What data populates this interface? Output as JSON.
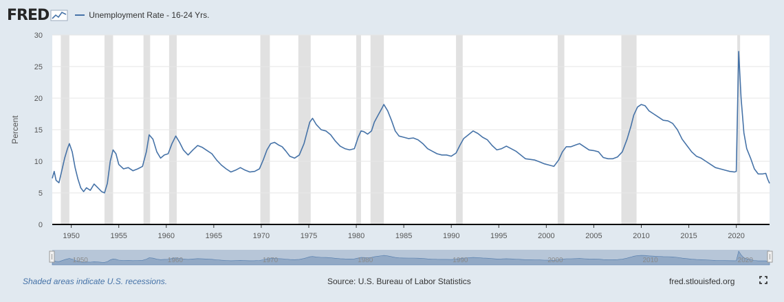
{
  "header": {
    "logo_text": "FRED",
    "legend_label": "Unemployment Rate - 16-24 Yrs."
  },
  "colors": {
    "line": "#4572a7",
    "recession": "#e1e1e1",
    "page_bg": "#e1e9f0",
    "navigator_fill": "#b7c6d8"
  },
  "footer": {
    "recession_note": "Shaded areas indicate U.S. recessions.",
    "source": "Source: U.S. Bureau of Labor Statistics",
    "site": "fred.stlouisfed.org",
    "fullscreen_icon": "expand-icon"
  },
  "chart_data": {
    "type": "line",
    "title": "",
    "xlabel": "",
    "ylabel": "Percent",
    "xlim": [
      1948.0,
      2023.5
    ],
    "ylim": [
      0,
      30
    ],
    "yticks": [
      "0",
      "5",
      "10",
      "15",
      "20",
      "25",
      "30"
    ],
    "xticks": [
      "1950",
      "1955",
      "1960",
      "1965",
      "1970",
      "1975",
      "1980",
      "1985",
      "1990",
      "1995",
      "2000",
      "2005",
      "2010",
      "2015",
      "2020"
    ],
    "navigator_labels": [
      "1950",
      "1960",
      "1970",
      "1980",
      "1990",
      "2000",
      "2010",
      "2020"
    ],
    "grid": true,
    "recessions": [
      [
        1948.9,
        1949.8
      ],
      [
        1953.5,
        1954.4
      ],
      [
        1957.6,
        1958.3
      ],
      [
        1960.3,
        1961.1
      ],
      [
        1969.9,
        1970.9
      ],
      [
        1973.9,
        1975.2
      ],
      [
        1980.0,
        1980.5
      ],
      [
        1981.5,
        1982.9
      ],
      [
        1990.5,
        1991.2
      ],
      [
        2001.2,
        2001.9
      ],
      [
        2007.9,
        2009.5
      ],
      [
        2020.1,
        2020.4
      ]
    ],
    "series": [
      {
        "values": [
          [
            1948.0,
            7.3
          ],
          [
            1948.2,
            8.4
          ],
          [
            1948.4,
            7.0
          ],
          [
            1948.7,
            6.6
          ],
          [
            1949.0,
            8.5
          ],
          [
            1949.3,
            10.5
          ],
          [
            1949.6,
            12.0
          ],
          [
            1949.8,
            12.8
          ],
          [
            1950.1,
            11.5
          ],
          [
            1950.4,
            9.0
          ],
          [
            1950.7,
            7.2
          ],
          [
            1951.0,
            5.8
          ],
          [
            1951.3,
            5.2
          ],
          [
            1951.6,
            5.8
          ],
          [
            1952.0,
            5.4
          ],
          [
            1952.4,
            6.4
          ],
          [
            1952.8,
            5.8
          ],
          [
            1953.2,
            5.2
          ],
          [
            1953.5,
            5.0
          ],
          [
            1953.8,
            6.5
          ],
          [
            1954.1,
            10.0
          ],
          [
            1954.4,
            11.8
          ],
          [
            1954.7,
            11.2
          ],
          [
            1955.0,
            9.5
          ],
          [
            1955.5,
            8.8
          ],
          [
            1956.0,
            9.0
          ],
          [
            1956.5,
            8.5
          ],
          [
            1957.0,
            8.8
          ],
          [
            1957.5,
            9.2
          ],
          [
            1957.9,
            11.5
          ],
          [
            1958.2,
            14.2
          ],
          [
            1958.6,
            13.5
          ],
          [
            1959.0,
            11.5
          ],
          [
            1959.4,
            10.5
          ],
          [
            1959.8,
            11.0
          ],
          [
            1960.2,
            11.2
          ],
          [
            1960.6,
            12.8
          ],
          [
            1961.0,
            14.0
          ],
          [
            1961.4,
            13.0
          ],
          [
            1961.8,
            11.8
          ],
          [
            1962.3,
            11.0
          ],
          [
            1962.8,
            11.8
          ],
          [
            1963.3,
            12.5
          ],
          [
            1963.8,
            12.2
          ],
          [
            1964.3,
            11.7
          ],
          [
            1964.8,
            11.2
          ],
          [
            1965.3,
            10.2
          ],
          [
            1965.8,
            9.4
          ],
          [
            1966.3,
            8.8
          ],
          [
            1966.8,
            8.3
          ],
          [
            1967.3,
            8.6
          ],
          [
            1967.8,
            9.0
          ],
          [
            1968.3,
            8.6
          ],
          [
            1968.8,
            8.3
          ],
          [
            1969.3,
            8.4
          ],
          [
            1969.8,
            8.8
          ],
          [
            1970.2,
            10.2
          ],
          [
            1970.6,
            11.8
          ],
          [
            1971.0,
            12.8
          ],
          [
            1971.4,
            13.0
          ],
          [
            1971.8,
            12.6
          ],
          [
            1972.2,
            12.3
          ],
          [
            1972.6,
            11.6
          ],
          [
            1973.0,
            10.8
          ],
          [
            1973.5,
            10.5
          ],
          [
            1974.0,
            11.0
          ],
          [
            1974.5,
            12.8
          ],
          [
            1974.8,
            14.5
          ],
          [
            1975.1,
            16.2
          ],
          [
            1975.4,
            16.8
          ],
          [
            1975.8,
            15.8
          ],
          [
            1976.3,
            15.0
          ],
          [
            1976.8,
            14.8
          ],
          [
            1977.3,
            14.2
          ],
          [
            1977.8,
            13.2
          ],
          [
            1978.3,
            12.4
          ],
          [
            1978.8,
            12.0
          ],
          [
            1979.3,
            11.8
          ],
          [
            1979.8,
            12.0
          ],
          [
            1980.2,
            13.8
          ],
          [
            1980.5,
            14.8
          ],
          [
            1980.8,
            14.7
          ],
          [
            1981.2,
            14.3
          ],
          [
            1981.6,
            14.8
          ],
          [
            1981.9,
            16.2
          ],
          [
            1982.3,
            17.3
          ],
          [
            1982.7,
            18.4
          ],
          [
            1982.9,
            19.0
          ],
          [
            1983.3,
            18.0
          ],
          [
            1983.7,
            16.5
          ],
          [
            1984.1,
            14.8
          ],
          [
            1984.5,
            14.0
          ],
          [
            1985.0,
            13.8
          ],
          [
            1985.5,
            13.6
          ],
          [
            1986.0,
            13.7
          ],
          [
            1986.5,
            13.4
          ],
          [
            1987.0,
            12.8
          ],
          [
            1987.5,
            12.0
          ],
          [
            1988.0,
            11.6
          ],
          [
            1988.5,
            11.2
          ],
          [
            1989.0,
            11.0
          ],
          [
            1989.5,
            11.0
          ],
          [
            1990.0,
            10.8
          ],
          [
            1990.5,
            11.3
          ],
          [
            1990.9,
            12.5
          ],
          [
            1991.3,
            13.6
          ],
          [
            1991.8,
            14.2
          ],
          [
            1992.3,
            14.8
          ],
          [
            1992.8,
            14.4
          ],
          [
            1993.3,
            13.8
          ],
          [
            1993.8,
            13.4
          ],
          [
            1994.3,
            12.5
          ],
          [
            1994.8,
            11.8
          ],
          [
            1995.3,
            12.0
          ],
          [
            1995.8,
            12.4
          ],
          [
            1996.3,
            12.0
          ],
          [
            1996.8,
            11.6
          ],
          [
            1997.3,
            11.0
          ],
          [
            1997.8,
            10.4
          ],
          [
            1998.3,
            10.3
          ],
          [
            1998.8,
            10.2
          ],
          [
            1999.3,
            9.9
          ],
          [
            1999.8,
            9.6
          ],
          [
            2000.3,
            9.4
          ],
          [
            2000.8,
            9.2
          ],
          [
            2001.3,
            10.2
          ],
          [
            2001.7,
            11.5
          ],
          [
            2002.1,
            12.3
          ],
          [
            2002.6,
            12.3
          ],
          [
            2003.1,
            12.6
          ],
          [
            2003.5,
            12.8
          ],
          [
            2004.0,
            12.3
          ],
          [
            2004.5,
            11.8
          ],
          [
            2005.0,
            11.7
          ],
          [
            2005.5,
            11.5
          ],
          [
            2006.0,
            10.6
          ],
          [
            2006.5,
            10.4
          ],
          [
            2007.0,
            10.4
          ],
          [
            2007.5,
            10.7
          ],
          [
            2008.0,
            11.5
          ],
          [
            2008.5,
            13.5
          ],
          [
            2008.9,
            15.5
          ],
          [
            2009.2,
            17.3
          ],
          [
            2009.6,
            18.6
          ],
          [
            2010.0,
            19.0
          ],
          [
            2010.4,
            18.8
          ],
          [
            2010.8,
            18.0
          ],
          [
            2011.3,
            17.5
          ],
          [
            2011.8,
            17.0
          ],
          [
            2012.3,
            16.5
          ],
          [
            2012.8,
            16.4
          ],
          [
            2013.3,
            16.0
          ],
          [
            2013.8,
            15.0
          ],
          [
            2014.3,
            13.5
          ],
          [
            2014.8,
            12.5
          ],
          [
            2015.3,
            11.5
          ],
          [
            2015.8,
            10.8
          ],
          [
            2016.3,
            10.5
          ],
          [
            2016.8,
            10.0
          ],
          [
            2017.3,
            9.5
          ],
          [
            2017.8,
            9.0
          ],
          [
            2018.3,
            8.8
          ],
          [
            2018.8,
            8.6
          ],
          [
            2019.3,
            8.4
          ],
          [
            2019.8,
            8.3
          ],
          [
            2020.0,
            8.4
          ],
          [
            2020.25,
            27.4
          ],
          [
            2020.5,
            20.0
          ],
          [
            2020.8,
            14.5
          ],
          [
            2021.1,
            12.0
          ],
          [
            2021.5,
            10.5
          ],
          [
            2021.9,
            8.8
          ],
          [
            2022.3,
            8.0
          ],
          [
            2022.8,
            8.0
          ],
          [
            2023.1,
            8.1
          ],
          [
            2023.3,
            7.2
          ],
          [
            2023.5,
            6.5
          ]
        ]
      }
    ]
  }
}
